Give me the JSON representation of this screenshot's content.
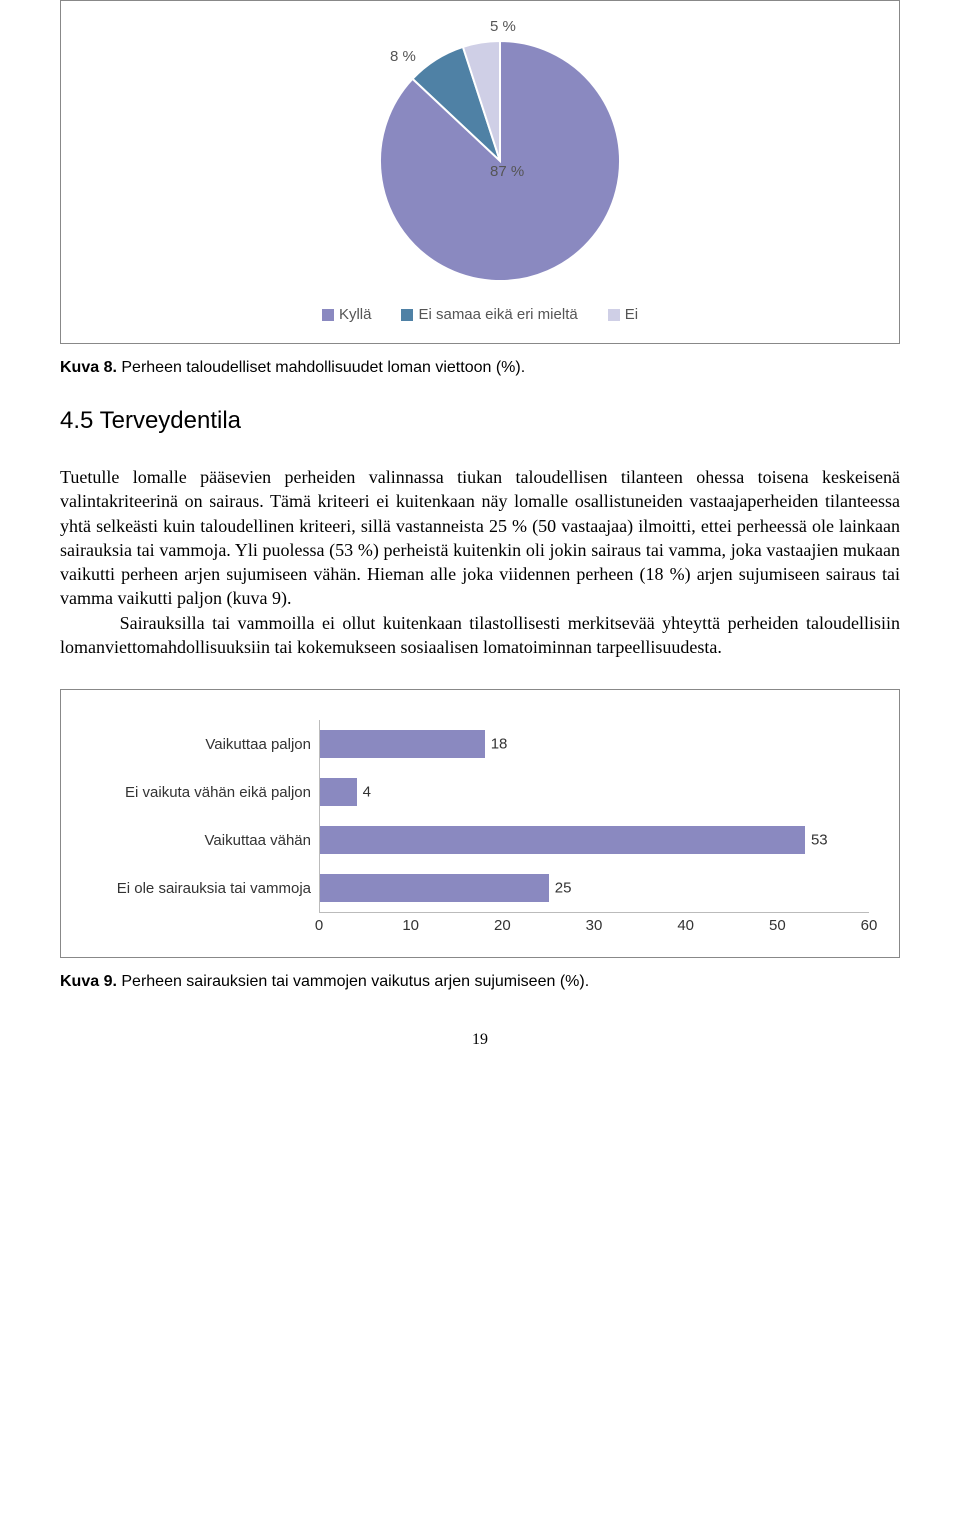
{
  "pie_chart": {
    "type": "pie",
    "slices": [
      {
        "label": "Kyllä",
        "value": 87,
        "color": "#8a89c0",
        "label_text": "87 %"
      },
      {
        "label": "Ei samaa eikä eri mieltä",
        "value": 8,
        "color": "#4f81a5",
        "label_text": "8 %"
      },
      {
        "label": "Ei",
        "value": 5,
        "color": "#cfcfe6",
        "label_text": "5 %"
      }
    ],
    "legend": [
      {
        "label": "Kyllä",
        "color": "#8a89c0"
      },
      {
        "label": "Ei samaa eikä eri mieltä",
        "color": "#4f81a5"
      },
      {
        "label": "Ei",
        "color": "#cfcfe6"
      }
    ],
    "label_fontsize": 15,
    "label_color": "#555555"
  },
  "caption1": {
    "bold": "Kuva 8.",
    "text": " Perheen taloudelliset mahdollisuudet loman viettoon (%)."
  },
  "section": {
    "number": "4.5",
    "title": "Terveydentila"
  },
  "paragraph1": "Tuetulle lomalle pääsevien perheiden valinnassa tiukan taloudellisen tilanteen ohessa toisena keskeisenä valintakriteerinä on sairaus. Tämä kriteeri ei kuitenkaan näy lomalle osallistuneiden vastaajaperheiden tilanteessa yhtä selkeästi kuin taloudellinen kriteeri, sillä vastanneista 25 % (50 vastaajaa) ilmoitti, ettei perheessä ole lainkaan sairauksia tai vammoja. Yli puolessa (53 %) perheistä kuitenkin oli jokin sairaus tai vamma, joka vastaajien mukaan vaikutti perheen arjen sujumiseen vähän. Hieman alle joka viidennen perheen (18 %) arjen sujumiseen sairaus tai vamma vaikutti paljon (kuva 9).",
  "paragraph2_indent": "        Sairauksilla tai vammoilla ei ollut kuitenkaan tilastollisesti merkitsevää yhteyttä perheiden taloudellisiin lomanviettomahdollisuuksiin tai kokemukseen sosiaalisen lomatoiminnan tarpeellisuudesta.",
  "bar_chart": {
    "type": "bar",
    "bars": [
      {
        "label": "Vaikuttaa paljon",
        "value": 18
      },
      {
        "label": "Ei vaikuta vähän eikä paljon",
        "value": 4
      },
      {
        "label": "Vaikuttaa vähän",
        "value": 53
      },
      {
        "label": "Ei ole sairauksia tai vammoja",
        "value": 25
      }
    ],
    "bar_color": "#8a89c0",
    "xmax": 60,
    "ticks": [
      0,
      10,
      20,
      30,
      40,
      50,
      60
    ],
    "label_fontsize": 15
  },
  "caption2": {
    "bold": "Kuva 9.",
    "text": " Perheen sairauksien tai vammojen vaikutus arjen sujumiseen (%)."
  },
  "page_number": "19"
}
